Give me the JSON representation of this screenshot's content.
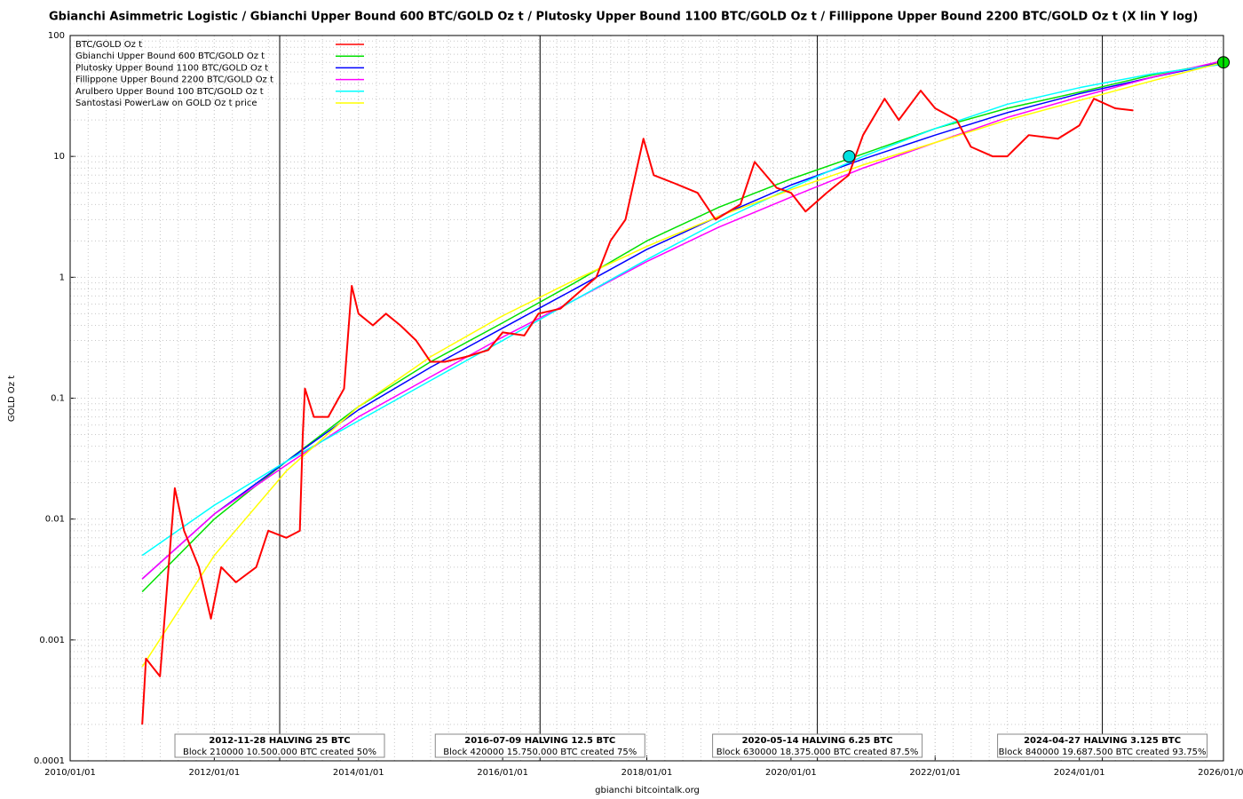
{
  "chart_data": {
    "type": "line",
    "title": "Gbianchi Asimmetric Logistic / Gbianchi Upper Bound 600  BTC/GOLD Oz t / Plutosky Upper Bound 1100  BTC/GOLD Oz t / Fillippone Upper Bound 2200  BTC/GOLD Oz t  (X lin Y log)",
    "y_label": "GOLD Oz t",
    "x_label": "gbianchi bitcointalk.org",
    "log_y": true,
    "grid": true,
    "legend": "top-left",
    "xlim": [
      "2010/01/01",
      "2026/01/01"
    ],
    "xticks": [
      "2010/01/01",
      "2012/01/01",
      "2014/01/01",
      "2016/01/01",
      "2018/01/01",
      "2020/01/01",
      "2022/01/01",
      "2024/01/01",
      "2026/01/01"
    ],
    "ylim": [
      0.0001,
      100
    ],
    "yticks": [
      0.0001,
      0.001,
      0.01,
      0.1,
      1,
      10,
      100
    ],
    "series": [
      {
        "name": "BTC/GOLD Oz t",
        "color": "#ff0000",
        "width": 2,
        "x": [
          "2011/01/01",
          "2011/01/20",
          "2011/04/01",
          "2011/06/15",
          "2011/08/01",
          "2011/10/15",
          "2011/12/15",
          "2012/02/05",
          "2012/04/20",
          "2012/08/01",
          "2012/10/01",
          "2013/01/01",
          "2013/03/10",
          "2013/03/25",
          "2013/04/05",
          "2013/05/20",
          "2013/08/01",
          "2013/10/20",
          "2013/11/28",
          "2014/01/01",
          "2014/03/15",
          "2014/05/20",
          "2014/08/01",
          "2014/10/20",
          "2015/01/01",
          "2015/03/15",
          "2015/07/01",
          "2015/10/20",
          "2016/01/01",
          "2016/04/20",
          "2016/07/01",
          "2016/10/20",
          "2017/01/01",
          "2017/04/20",
          "2017/07/01",
          "2017/09/15",
          "2017/12/15",
          "2018/02/05",
          "2018/05/20",
          "2018/09/15",
          "2018/12/15",
          "2019/04/20",
          "2019/07/01",
          "2019/10/20",
          "2020/01/01",
          "2020/03/15",
          "2020/07/01",
          "2020/10/20",
          "2021/01/01",
          "2021/04/20",
          "2021/07/01",
          "2021/10/20",
          "2022/01/01",
          "2022/04/20",
          "2022/07/01",
          "2022/10/20",
          "2023/01/01",
          "2023/04/20",
          "2023/09/15",
          "2024/01/01",
          "2024/03/15",
          "2024/07/01",
          "2024/10/01"
        ],
        "values": [
          0.0002,
          0.0007,
          0.0005,
          0.018,
          0.008,
          0.004,
          0.0015,
          0.004,
          0.003,
          0.004,
          0.008,
          0.007,
          0.008,
          0.05,
          0.12,
          0.07,
          0.07,
          0.12,
          0.85,
          0.5,
          0.4,
          0.5,
          0.4,
          0.3,
          0.2,
          0.2,
          0.22,
          0.25,
          0.35,
          0.33,
          0.5,
          0.55,
          0.7,
          1.0,
          2.0,
          3.0,
          14,
          7,
          6,
          5,
          3,
          4,
          9,
          5.5,
          5,
          3.5,
          5,
          7,
          15,
          30,
          20,
          35,
          25,
          20,
          12,
          10,
          10,
          15,
          14,
          18,
          30,
          25,
          24
        ]
      },
      {
        "name": "Gbianchi Upper Bound 600  BTC/GOLD Oz t",
        "color": "#00e000",
        "width": 1.5,
        "x": [
          "2011/01/01",
          "2012/01/01",
          "2013/01/01",
          "2014/01/01",
          "2015/01/01",
          "2016/01/01",
          "2017/01/01",
          "2018/01/01",
          "2019/01/01",
          "2020/01/01",
          "2021/01/01",
          "2022/01/01",
          "2023/01/01",
          "2024/01/01",
          "2025/01/01",
          "2026/01/01"
        ],
        "values": [
          0.0025,
          0.01,
          0.03,
          0.085,
          0.2,
          0.42,
          0.9,
          2.0,
          3.8,
          6.5,
          10.5,
          17,
          25,
          34,
          47,
          60
        ]
      },
      {
        "name": "Plutosky Upper Bound 1100  BTC/GOLD Oz t",
        "color": "#0000ff",
        "width": 1.5,
        "x": [
          "2011/01/01",
          "2012/01/01",
          "2013/01/01",
          "2014/01/01",
          "2015/01/01",
          "2016/01/01",
          "2017/01/01",
          "2018/01/01",
          "2019/01/01",
          "2020/01/01",
          "2021/01/01",
          "2022/01/01",
          "2023/01/01",
          "2024/01/01",
          "2025/01/01",
          "2026/01/01"
        ],
        "values": [
          0.0032,
          0.011,
          0.03,
          0.08,
          0.18,
          0.38,
          0.8,
          1.7,
          3.2,
          5.8,
          9.5,
          15,
          23,
          33,
          45,
          60
        ]
      },
      {
        "name": "Fillippone Upper Bound 2200  BTC/GOLD Oz t",
        "color": "#ff00ff",
        "width": 1.5,
        "x": [
          "2011/01/01",
          "2012/01/01",
          "2013/01/01",
          "2014/01/01",
          "2015/01/01",
          "2016/01/01",
          "2017/01/01",
          "2018/01/01",
          "2019/01/01",
          "2020/01/01",
          "2021/01/01",
          "2022/01/01",
          "2023/01/01",
          "2024/01/01",
          "2025/01/01",
          "2026/01/01"
        ],
        "values": [
          0.0032,
          0.011,
          0.028,
          0.07,
          0.15,
          0.32,
          0.65,
          1.35,
          2.6,
          4.6,
          8,
          13,
          21,
          31,
          45,
          62
        ]
      },
      {
        "name": "Arulbero Upper Bound 100  BTC/GOLD Oz t",
        "color": "#00ffff",
        "width": 1.5,
        "x": [
          "2011/01/01",
          "2012/01/01",
          "2013/01/01",
          "2014/01/01",
          "2015/01/01",
          "2016/01/01",
          "2017/01/01",
          "2018/01/01",
          "2019/01/01",
          "2020/01/01",
          "2021/01/01",
          "2022/01/01",
          "2023/01/01",
          "2024/01/01",
          "2025/01/01",
          "2026/01/01"
        ],
        "values": [
          0.005,
          0.013,
          0.03,
          0.065,
          0.14,
          0.3,
          0.65,
          1.4,
          2.9,
          5.5,
          10,
          17,
          27,
          37,
          48,
          58
        ]
      },
      {
        "name": "Santostasi PowerLaw on GOLD Oz t price",
        "color": "#ffff00",
        "width": 1.5,
        "x": [
          "2011/01/01",
          "2012/01/01",
          "2013/01/01",
          "2014/01/01",
          "2015/01/01",
          "2016/01/01",
          "2017/01/01",
          "2018/01/01",
          "2019/01/01",
          "2020/01/01",
          "2021/01/01",
          "2022/01/01",
          "2023/01/01",
          "2024/01/01",
          "2025/01/01",
          "2026/01/01"
        ],
        "values": [
          0.0006,
          0.005,
          0.025,
          0.085,
          0.22,
          0.48,
          0.95,
          1.8,
          3.2,
          5.3,
          8.5,
          13,
          20,
          29,
          42,
          60
        ]
      }
    ],
    "markers": [
      {
        "x": "2020/10/22",
        "value": 10,
        "color": "#00e0e0"
      },
      {
        "x": "2026/01/01",
        "value": 60,
        "color": "#00e000"
      }
    ],
    "events": [
      {
        "x": "2012/11/28",
        "label": "2012-11-28 HALVING 25 BTC",
        "detail": "Block 210000 10.500.000 BTC created 50%"
      },
      {
        "x": "2016/07/09",
        "label": "2016-07-09 HALVING 12.5 BTC",
        "detail": "Block 420000 15.750.000 BTC created 75%"
      },
      {
        "x": "2020/05/14",
        "label": "2020-05-14 HALVING 6.25 BTC",
        "detail": "Block 630000 18.375.000 BTC created 87.5%"
      },
      {
        "x": "2024/04/27",
        "label": "2024-04-27 HALVING 3.125 BTC",
        "detail": "Block 840000 19.687.500 BTC created 93.75%"
      }
    ]
  }
}
